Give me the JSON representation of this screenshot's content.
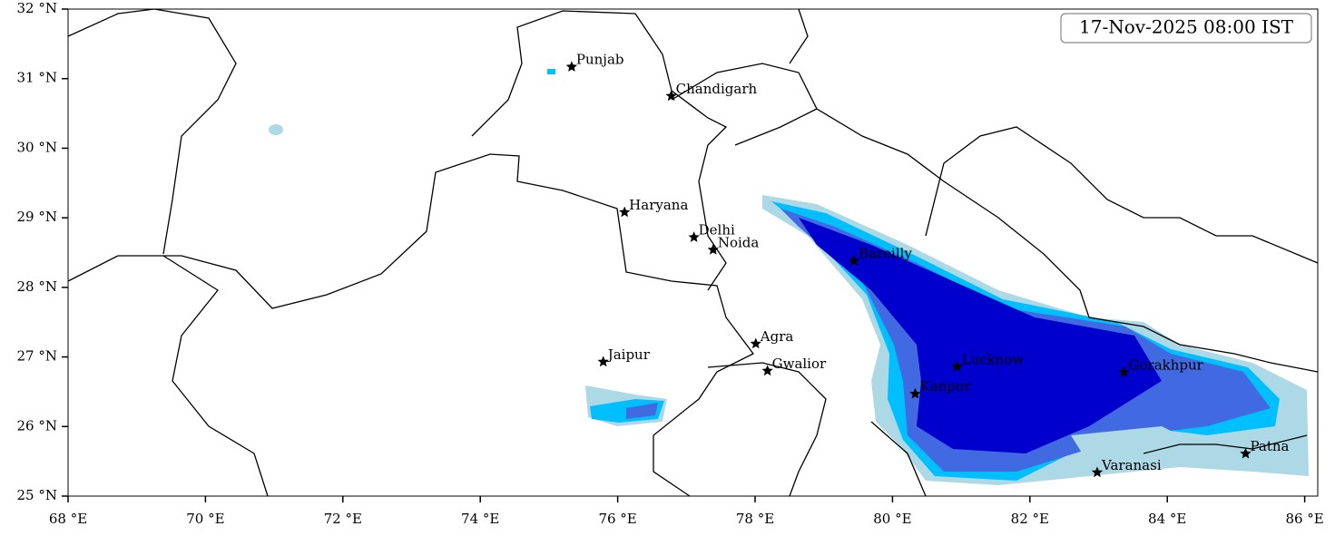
{
  "timestamp": "17-Nov-2025 08:00 IST",
  "xlim": [
    68,
    86.19
  ],
  "ylim": [
    25,
    32
  ],
  "xticks": [
    {
      "value": 68,
      "label": "68 °E"
    },
    {
      "value": 70,
      "label": "70 °E"
    },
    {
      "value": 72,
      "label": "72 °E"
    },
    {
      "value": 74,
      "label": "74 °E"
    },
    {
      "value": 76,
      "label": "76 °E"
    },
    {
      "value": 78,
      "label": "78 °E"
    },
    {
      "value": 80,
      "label": "80 °E"
    },
    {
      "value": 82,
      "label": "82 °E"
    },
    {
      "value": 84,
      "label": "84 °E"
    },
    {
      "value": 86,
      "label": "86 °E"
    }
  ],
  "yticks": [
    {
      "value": 25,
      "label": "25 °N"
    },
    {
      "value": 26,
      "label": "26 °N"
    },
    {
      "value": 27,
      "label": "27 °N"
    },
    {
      "value": 28,
      "label": "28 °N"
    },
    {
      "value": 29,
      "label": "29 °N"
    },
    {
      "value": 30,
      "label": "30 °N"
    },
    {
      "value": 31,
      "label": "31 °N"
    },
    {
      "value": 32,
      "label": "32 °N"
    }
  ],
  "cities": [
    {
      "name": "Punjab",
      "lon": 75.33,
      "lat": 31.17
    },
    {
      "name": "Chandigarh",
      "lon": 76.78,
      "lat": 30.75
    },
    {
      "name": "Haryana",
      "lon": 76.1,
      "lat": 29.08
    },
    {
      "name": "Delhi",
      "lon": 77.11,
      "lat": 28.72
    },
    {
      "name": "Noida",
      "lon": 77.39,
      "lat": 28.54
    },
    {
      "name": "Bareilly",
      "lon": 79.44,
      "lat": 28.38
    },
    {
      "name": "Agra",
      "lon": 78.01,
      "lat": 27.19
    },
    {
      "name": "Jaipur",
      "lon": 75.79,
      "lat": 26.93
    },
    {
      "name": "Gwalior",
      "lon": 78.18,
      "lat": 26.8
    },
    {
      "name": "Lucknow",
      "lon": 80.94,
      "lat": 26.86
    },
    {
      "name": "Kanpur",
      "lon": 80.33,
      "lat": 26.47
    },
    {
      "name": "Gorakhpur",
      "lon": 83.37,
      "lat": 26.78
    },
    {
      "name": "Varanasi",
      "lon": 82.98,
      "lat": 25.34
    },
    {
      "name": "Patna",
      "lon": 85.14,
      "lat": 25.61
    }
  ]
}
